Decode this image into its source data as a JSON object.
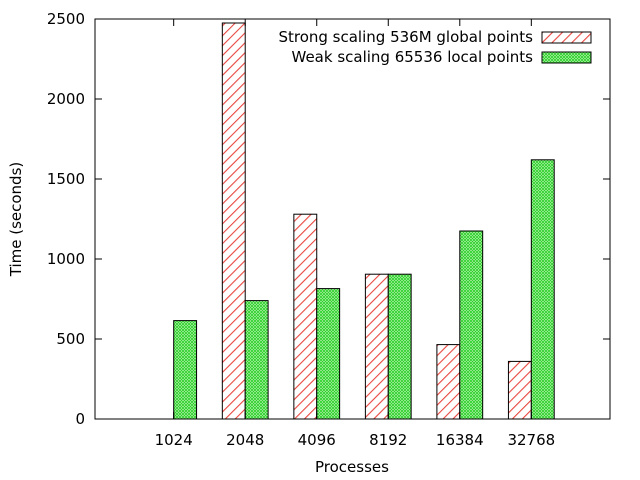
{
  "chart_data": {
    "type": "bar",
    "title": "",
    "xlabel": "Processes",
    "ylabel": "Time (seconds)",
    "categories": [
      "1024",
      "2048",
      "4096",
      "8192",
      "16384",
      "32768"
    ],
    "series": [
      {
        "name": "Strong scaling 536M global points",
        "values": [
          null,
          2475,
          1280,
          905,
          465,
          360
        ],
        "color": "#e8473f",
        "pattern": "diagonal-hatch"
      },
      {
        "name": "Weak scaling 65536 local points",
        "values": [
          615,
          740,
          815,
          905,
          1175,
          1620
        ],
        "color": "#2bd12b",
        "pattern": "cross-hatch"
      }
    ],
    "ylim": [
      0,
      2500
    ],
    "yticks": [
      0,
      500,
      1000,
      1500,
      2000,
      2500
    ],
    "xlim": [
      -1.1,
      6.1
    ],
    "grid": false,
    "legend_position": "top-right"
  }
}
